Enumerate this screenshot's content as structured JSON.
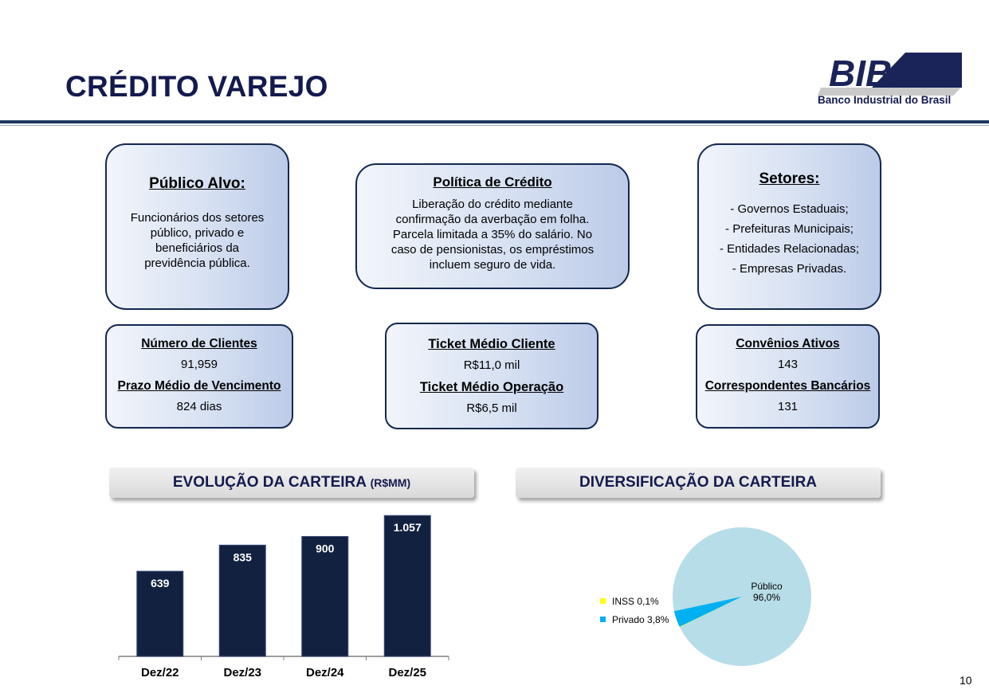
{
  "header": {
    "title": "CRÉDITO VAREJO",
    "logo_text": "BIB",
    "logo_subtitle": "Banco Industrial do Brasil"
  },
  "boxes": {
    "publico_alvo": {
      "title": "Público Alvo:",
      "lines": [
        "Funcionários dos setores",
        "público, privado e",
        "beneficiários da",
        "previdência pública."
      ]
    },
    "politica": {
      "title": "Política de Crédito",
      "lines": [
        "Liberação do crédito mediante",
        "confirmação da averbação em folha.",
        "Parcela limitada a 35% do salário. No",
        "caso de pensionistas, os empréstimos",
        "incluem seguro de vida."
      ]
    },
    "setores": {
      "title": "Setores:",
      "lines": [
        "- Governos Estaduais;",
        "- Prefeituras Municipais;",
        "- Entidades Relacionadas;",
        "- Empresas Privadas."
      ]
    }
  },
  "metrics": {
    "clientes": {
      "label1": "Número de Clientes",
      "value1": "91,959",
      "label2": "Prazo Médio de Vencimento",
      "value2": "824 dias"
    },
    "ticket": {
      "label1": "Ticket Médio Cliente",
      "value1": "R$11,0 mil",
      "label2": "Ticket Médio Operação",
      "value2": "R$6,5 mil"
    },
    "convenios": {
      "label1": "Convênios Ativos",
      "value1": "143",
      "label2": "Correspondentes Bancários",
      "value2": "131"
    }
  },
  "banners": {
    "evolucao": "EVOLUÇÃO DA CARTEIRA",
    "evolucao_unit": "(R$MM)",
    "diversificacao": "DIVERSIFICAÇÃO DA CARTEIRA"
  },
  "chart_data": [
    {
      "type": "bar",
      "categories": [
        "Dez/22",
        "Dez/23",
        "Dez/24",
        "Dez/25"
      ],
      "values": [
        639,
        835,
        900,
        1057
      ],
      "value_labels": [
        "639",
        "835",
        "900",
        "1.057"
      ],
      "title": "",
      "xlabel": "",
      "ylabel": "",
      "ylim": [
        0,
        1100
      ],
      "grid": false,
      "colors": {
        "bar": "#12213f",
        "label": "#ffffff"
      }
    },
    {
      "type": "pie",
      "slices": [
        {
          "name": "Público",
          "label": "96,0%",
          "value": 96.0,
          "color": "#b7dde8"
        },
        {
          "name": "Privado",
          "label": "3,8%",
          "value": 3.8,
          "color": "#00b0f0"
        },
        {
          "name": "INSS",
          "label": "0,1%",
          "value": 0.1,
          "color": "#ffff00"
        }
      ]
    }
  ],
  "footer": {
    "page_number": "10"
  }
}
